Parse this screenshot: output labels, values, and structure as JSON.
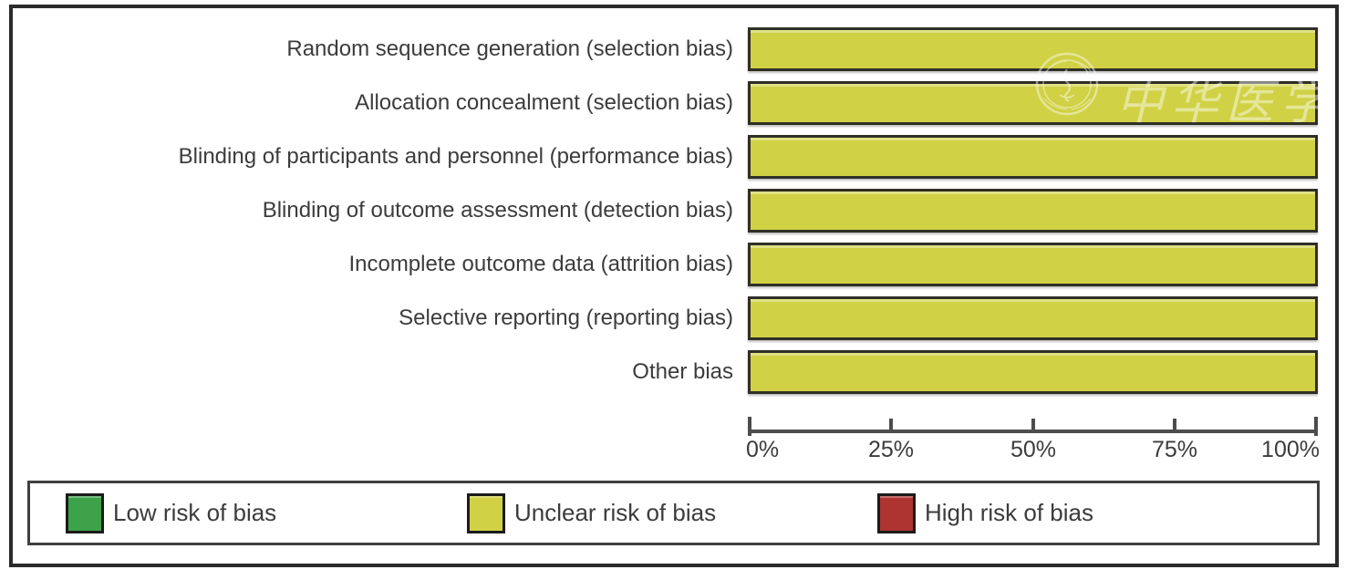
{
  "watermark": {
    "text": "中华医学会",
    "seal_name": "chinese-medical-association-seal"
  },
  "chart_data": {
    "type": "bar",
    "orientation": "horizontal",
    "stacked": true,
    "title": "",
    "xlabel": "",
    "ylabel": "",
    "xlim": [
      0,
      100
    ],
    "x_tick_labels": [
      "0%",
      "25%",
      "50%",
      "75%",
      "100%"
    ],
    "x_tick_values": [
      0,
      25,
      50,
      75,
      100
    ],
    "grid": false,
    "legend_position": "bottom",
    "categories": [
      "Random sequence generation (selection bias)",
      "Allocation concealment (selection bias)",
      "Blinding of participants and personnel (performance bias)",
      "Blinding of outcome assessment (detection bias)",
      "Incomplete outcome data (attrition bias)",
      "Selective reporting (reporting bias)",
      "Other bias"
    ],
    "series": [
      {
        "name": "Low risk of bias",
        "color": "#3ea24a",
        "values": [
          0,
          0,
          0,
          0,
          0,
          0,
          0
        ]
      },
      {
        "name": "Unclear risk of bias",
        "color": "#d0d144",
        "values": [
          100,
          100,
          100,
          100,
          100,
          100,
          100
        ]
      },
      {
        "name": "High risk of bias",
        "color": "#ae3431",
        "values": [
          0,
          0,
          0,
          0,
          0,
          0,
          0
        ]
      }
    ]
  },
  "colors": {
    "bar_border": "#2f2f27",
    "axis": "#4d4d4d",
    "text": "#3c3c3c",
    "frame_border": "#2b2b2b",
    "legend_border": "#3f3f3f",
    "background": "#ffffff",
    "watermark": "#ffffff"
  }
}
